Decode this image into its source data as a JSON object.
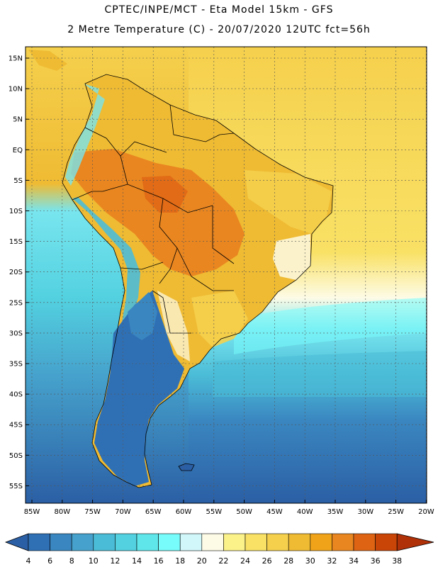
{
  "title": {
    "line1": "CPTEC/INPE/MCT -  Eta Model 15km - GFS",
    "line2": "2 Metre Temperature (C) - 20/07/2020 12UTC fct=56h"
  },
  "axes": {
    "lat_labels": [
      "15N",
      "10N",
      "5N",
      "EQ",
      "5S",
      "10S",
      "15S",
      "20S",
      "25S",
      "30S",
      "35S",
      "40S",
      "45S",
      "50S",
      "55S"
    ],
    "lon_labels": [
      "85W",
      "80W",
      "75W",
      "70W",
      "65W",
      "60W",
      "55W",
      "50W",
      "45W",
      "40W",
      "35W",
      "30W",
      "25W",
      "20W"
    ]
  },
  "colorbar": {
    "labels": [
      "4",
      "6",
      "8",
      "10",
      "12",
      "14",
      "16",
      "18",
      "20",
      "22",
      "24",
      "26",
      "28",
      "30",
      "32",
      "34",
      "36",
      "38"
    ],
    "colors": [
      "#2b5fa5",
      "#2f70b5",
      "#3a86c0",
      "#46a2cc",
      "#4bbcd7",
      "#53d1e0",
      "#5fe6ea",
      "#78fbfb",
      "#d2f7fa",
      "#fdfbe6",
      "#fcf28a",
      "#f9e165",
      "#f5d04d",
      "#efbb33",
      "#f0a319",
      "#e98620",
      "#de6414",
      "#c94407",
      "#b03008"
    ]
  },
  "colors": {
    "ocean_deep": "#2b5fa5",
    "ocean_mid": "#3a86c0",
    "ocean_cyan": "#4bbcd7",
    "ocean_light": "#78e5ee",
    "warm_yellow": "#f5d04d",
    "warm_orange": "#efbb33",
    "hot_orange": "#e98620",
    "cream": "#fdfbe6"
  }
}
